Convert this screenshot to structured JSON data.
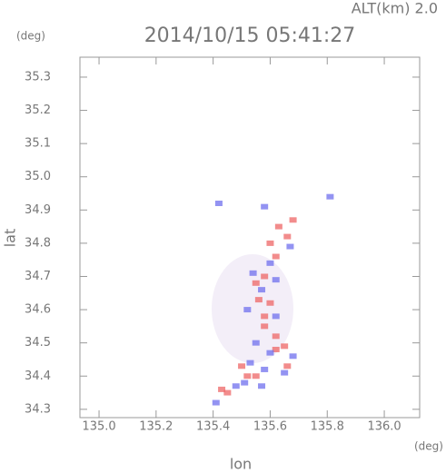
{
  "chart_data": {
    "type": "scatter",
    "title": "2014/10/15 05:41:27",
    "subtitle": "ALT(km)  2.0",
    "y_unit": "(deg)",
    "x_unit": "(deg)",
    "xlabel": "lon",
    "ylabel": "lat",
    "xlim": [
      134.933,
      136.124
    ],
    "ylim": [
      34.275,
      35.36
    ],
    "xticks": [
      {
        "value": 135,
        "label": "135.0"
      },
      135.2,
      135.4,
      135.6,
      135.8,
      {
        "value": 136,
        "label": "136.0"
      }
    ],
    "yticks": [
      34.3,
      34.4,
      34.5,
      34.6,
      34.7,
      34.8,
      34.9,
      {
        "value": 35,
        "label": "35.0"
      },
      35.1,
      35.2,
      35.3
    ],
    "series": [
      {
        "color": "#ee6666",
        "x": [
          135.45,
          135.43,
          135.52,
          135.55,
          135.62,
          135.65,
          135.58,
          135.6,
          135.56,
          135.58,
          135.55,
          135.62,
          135.6,
          135.63,
          135.66,
          135.68,
          135.58,
          135.66,
          135.5,
          135.62
        ],
        "y": [
          34.35,
          34.36,
          34.4,
          34.4,
          34.48,
          34.49,
          34.55,
          34.62,
          34.63,
          34.7,
          34.68,
          34.76,
          34.8,
          34.85,
          34.82,
          34.87,
          34.58,
          34.43,
          34.43,
          34.52
        ]
      },
      {
        "color": "#6f6fee",
        "x": [
          135.41,
          135.48,
          135.51,
          135.57,
          135.53,
          135.58,
          135.65,
          135.68,
          135.6,
          135.55,
          135.62,
          135.57,
          135.54,
          135.62,
          135.6,
          135.58,
          135.42,
          135.81,
          135.67,
          135.52
        ],
        "y": [
          34.32,
          34.37,
          34.38,
          34.37,
          34.44,
          34.42,
          34.41,
          34.46,
          34.47,
          34.5,
          34.58,
          34.66,
          34.71,
          34.69,
          34.74,
          34.91,
          34.92,
          34.94,
          34.79,
          34.6
        ]
      }
    ]
  }
}
